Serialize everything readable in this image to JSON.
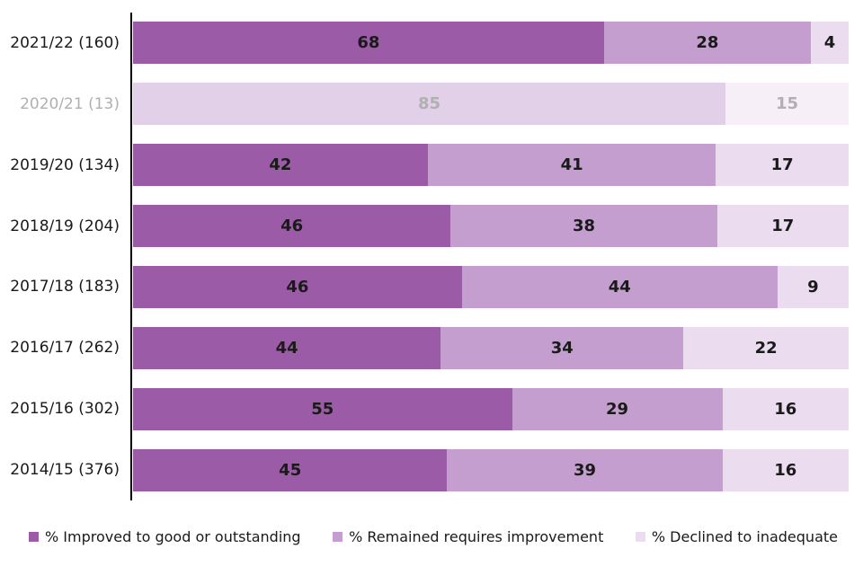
{
  "chart_data": {
    "type": "bar",
    "orientation": "horizontal",
    "stacked": true,
    "unit": "%",
    "xlim": [
      0,
      100
    ],
    "grid": false,
    "legend_position": "bottom",
    "categories": [
      "2021/22 (160)",
      "2020/21 (13)",
      "2019/20 (134)",
      "2018/19 (204)",
      "2017/18 (183)",
      "2016/17 (262)",
      "2015/16 (302)",
      "2014/15 (376)"
    ],
    "series": [
      {
        "name": "% Improved to good or outstanding",
        "color": "#9b5ba6",
        "faded_color": "#e1d0e8",
        "values": [
          68,
          85,
          42,
          46,
          46,
          44,
          55,
          45
        ]
      },
      {
        "name": "% Remained requires improvement",
        "color": "#c39ecf",
        "faded_color": "#f6eff8",
        "values": [
          28,
          15,
          41,
          38,
          44,
          34,
          29,
          39
        ]
      },
      {
        "name": "% Declined to inadequate",
        "color": "#ebdcf0",
        "faded_color": "#faf5fb",
        "values": [
          4,
          0,
          17,
          17,
          9,
          22,
          16,
          16
        ]
      }
    ],
    "faded_rows": [
      1
    ],
    "colors": {
      "axis": "#000000",
      "value_label": "#1a1a1a",
      "category_label": "#1a1a1a",
      "faded_label": "#b0b0b0",
      "background": "#ffffff"
    }
  }
}
